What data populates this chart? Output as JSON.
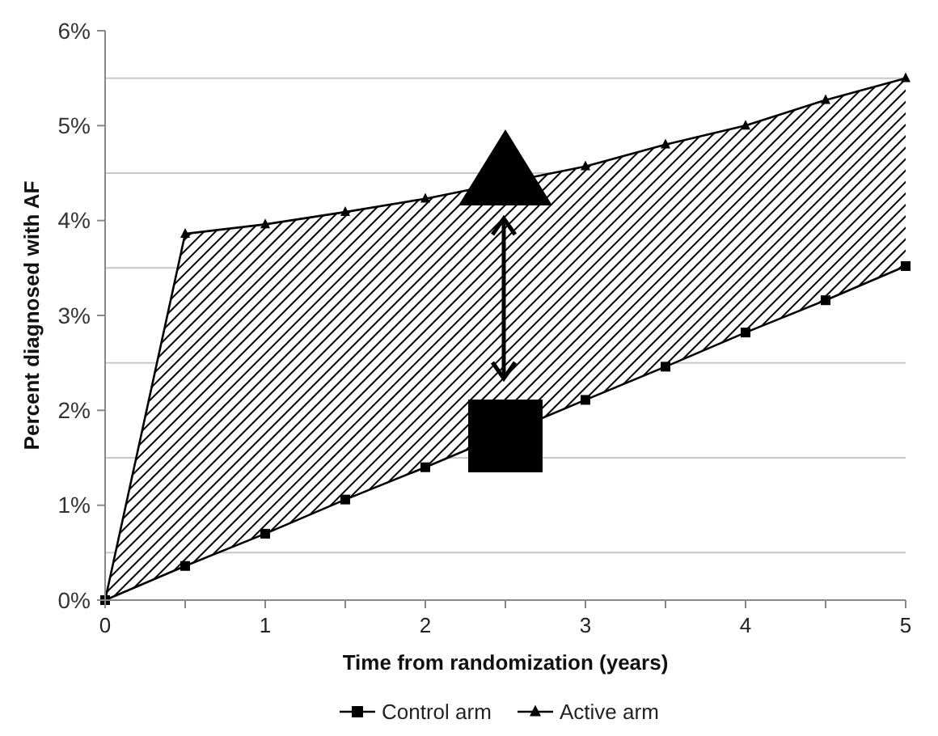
{
  "chart_data": {
    "type": "line",
    "xlabel": "Time from randomization  (years)",
    "ylabel": "Percent diagnosed with AF",
    "x": [
      0,
      0.5,
      1,
      1.5,
      2,
      2.5,
      3,
      3.5,
      4,
      4.5,
      5
    ],
    "series": [
      {
        "name": "Control arm",
        "color": "#000000",
        "marker": "square",
        "values": [
          0,
          0.36,
          0.7,
          1.06,
          1.4,
          null,
          2.11,
          2.46,
          2.82,
          3.16,
          3.52
        ]
      },
      {
        "name": "Active arm",
        "color": "#000000",
        "marker": "triangle",
        "values": [
          0,
          3.86,
          3.96,
          4.09,
          4.23,
          null,
          4.57,
          4.8,
          5.0,
          5.27,
          5.5
        ],
        "lower": [
          0,
          0.36,
          0.7,
          1.06,
          1.4,
          null,
          2.11,
          2.46,
          2.82,
          3.16,
          3.52
        ],
        "upper": [
          0,
          3.86,
          3.96,
          4.09,
          4.23,
          null,
          4.57,
          4.8,
          5.0,
          5.27,
          5.5
        ]
      }
    ],
    "xlim": [
      0,
      5
    ],
    "xticks": [
      0,
      {
        "value": 0.5,
        "label": null
      },
      1,
      {
        "value": 1.5,
        "label": null
      },
      2,
      {
        "value": 2.5,
        "label": null
      },
      3,
      {
        "value": 3.5,
        "label": null
      },
      4,
      {
        "value": 4.5,
        "label": null
      },
      5
    ],
    "ylim": [
      0,
      6
    ],
    "yticks": [
      {
        "value": 0,
        "label": "0%"
      },
      {
        "value": 0.5,
        "label": null
      },
      {
        "value": 1,
        "label": "1%"
      },
      {
        "value": 1.5,
        "label": null
      },
      {
        "value": 2,
        "label": "2%"
      },
      {
        "value": 2.5,
        "label": null
      },
      {
        "value": 3,
        "label": "3%"
      },
      {
        "value": 3.5,
        "label": null
      },
      {
        "value": 4,
        "label": "4%"
      },
      {
        "value": 4.5,
        "label": null
      },
      {
        "value": 5,
        "label": "5%"
      },
      {
        "value": 5.5,
        "label": null
      },
      {
        "value": 6,
        "label": "6%"
      }
    ],
    "grid": "y",
    "legend": "bottom",
    "line_style": "solid"
  }
}
